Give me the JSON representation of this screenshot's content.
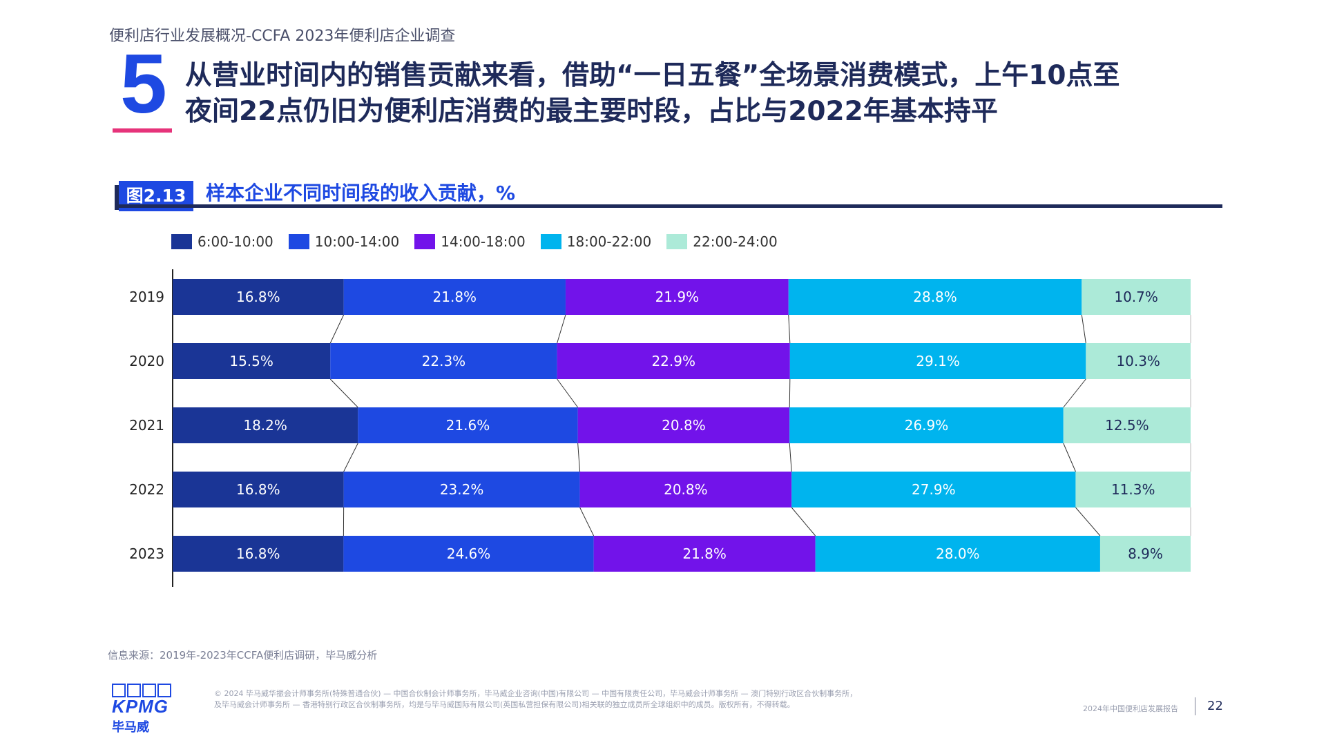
{
  "header": {
    "breadcrumb": "便利店行业发展概况-CCFA 2023年便利店企业调查",
    "section_number": "5",
    "headline_line1": "从营业时间内的销售贡献来看，借助“一日五餐”全场景消费模式，上午10点至",
    "headline_line2": "夜间22点仍旧为便利店消费的最主要时段，占比与2022年基本持平"
  },
  "figure": {
    "tag": "图2.13",
    "title": "样本企业不同时间段的收入贡献，%"
  },
  "chart_data": {
    "type": "bar",
    "orientation": "horizontal",
    "stacked": "100%",
    "title": "样本企业不同时间段的收入贡献，%",
    "categories": [
      "2019",
      "2020",
      "2021",
      "2022",
      "2023"
    ],
    "series": [
      {
        "name": "6:00-10:00",
        "color": "#1a3596",
        "values": [
          16.8,
          15.5,
          18.2,
          16.8,
          16.8
        ],
        "labels": [
          "16.8%",
          "15.5%",
          "18.2%",
          "16.8%",
          "16.8%"
        ]
      },
      {
        "name": "10:00-14:00",
        "color": "#1e49e2",
        "values": [
          21.8,
          22.3,
          21.6,
          23.2,
          24.6
        ],
        "labels": [
          "21.8%",
          "22.3%",
          "21.6%",
          "23.2%",
          "24.6%"
        ]
      },
      {
        "name": "14:00-18:00",
        "color": "#7213ea",
        "values": [
          21.9,
          22.9,
          20.8,
          20.8,
          21.8
        ],
        "labels": [
          "21.9%",
          "22.9%",
          "20.8%",
          "20.8%",
          "21.8%"
        ]
      },
      {
        "name": "18:00-22:00",
        "color": "#00b4ee",
        "values": [
          28.8,
          29.1,
          26.9,
          27.9,
          28.0
        ],
        "labels": [
          "28.8%",
          "29.1%",
          "26.9%",
          "27.9%",
          "28.0%"
        ]
      },
      {
        "name": "22:00-24:00",
        "color": "#acead8",
        "values": [
          10.7,
          10.3,
          12.5,
          11.3,
          8.9
        ],
        "labels": [
          "10.7%",
          "10.3%",
          "12.5%",
          "11.3%",
          "8.9%"
        ]
      }
    ],
    "legend_position": "top-left",
    "grid": false,
    "connector_lines": true
  },
  "source": "信息来源：2019年-2023年CCFA便利店调研，毕马威分析",
  "footer": {
    "logo_text": "KPMG",
    "logo_cn": "毕马威",
    "legal_line1": "© 2024 毕马威华振会计师事务所(特殊普通合伙) — 中国合伙制会计师事务所，毕马威企业咨询(中国)有限公司 — 中国有限责任公司，毕马威会计师事务所 — 澳门特别行政区合伙制事务所，",
    "legal_line2": "及毕马威会计师事务所 — 香港特别行政区合伙制事务所，均是与毕马威国际有限公司(英国私营担保有限公司)相关联的独立成员所全球组织中的成员。版权所有，不得转载。",
    "report_name": "2024年中国便利店发展报告",
    "page_number": "22"
  }
}
